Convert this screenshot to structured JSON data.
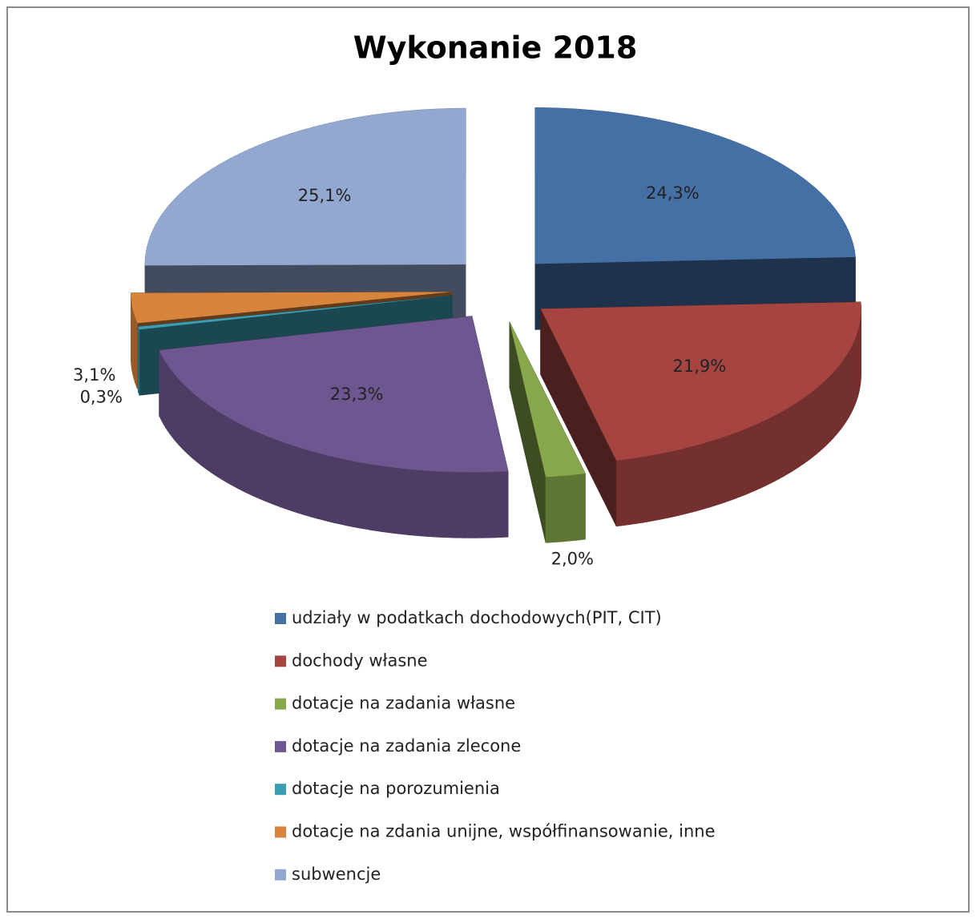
{
  "chart_data": {
    "type": "pie3d",
    "title": "Wykonanie 2018",
    "categories": [
      "udziały w podatkach dochodowych(PIT, CIT)",
      "dochody własne",
      "dotacje na zadania własne",
      "dotacje na zadania zlecone",
      "dotacje na porozumienia",
      "dotacje na zdania unijne, współfinansowanie, inne",
      "subwencje"
    ],
    "values": [
      24.3,
      21.9,
      2.0,
      23.3,
      0.3,
      3.1,
      25.1
    ],
    "value_labels": [
      "24,3%",
      "21,9%",
      "2,0%",
      "23,3%",
      "0,3%",
      "3,1%",
      "25,1%"
    ],
    "colors": [
      "#4470a6",
      "#a64442",
      "#87a84b",
      "#6e5790",
      "#3b9db2",
      "#d9843c",
      "#93a8d1"
    ],
    "legend": "bottom"
  }
}
